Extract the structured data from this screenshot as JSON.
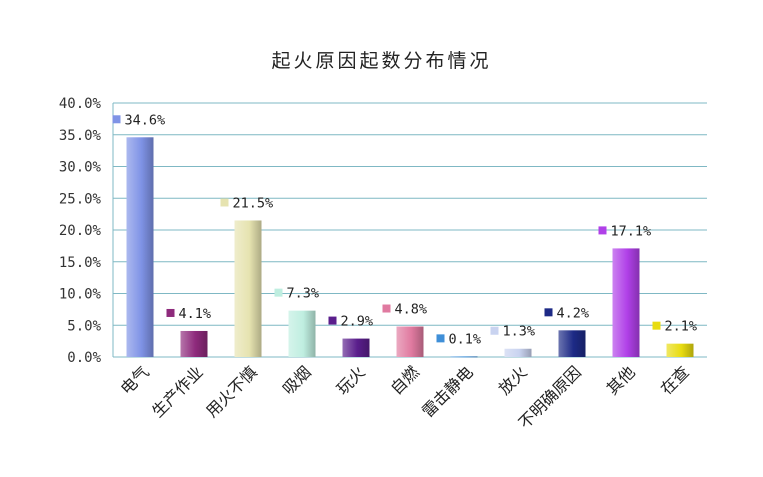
{
  "chart_data": {
    "type": "bar",
    "title": "起火原因起数分布情况",
    "xlabel": "",
    "ylabel": "",
    "ylim": [
      0,
      40
    ],
    "yticks": [
      "0.0%",
      "5.0%",
      "10.0%",
      "15.0%",
      "20.0%",
      "25.0%",
      "30.0%",
      "35.0%",
      "40.0%"
    ],
    "grid": true,
    "categories": [
      "电气",
      "生产作业",
      "用火不慎",
      "吸烟",
      "玩火",
      "自燃",
      "雷击静电",
      "放火",
      "不明确原因",
      "其他",
      "在查"
    ],
    "values": [
      34.6,
      4.1,
      21.5,
      7.3,
      2.9,
      4.8,
      0.1,
      1.3,
      4.2,
      17.1,
      2.1
    ],
    "data_labels": [
      "34.6%",
      "4.1%",
      "21.5%",
      "7.3%",
      "2.9%",
      "4.8%",
      "0.1%",
      "1.3%",
      "4.2%",
      "17.1%",
      "2.1%"
    ],
    "colors": [
      "#7f93e6",
      "#8e2a7c",
      "#e6e3b0",
      "#bfeee0",
      "#5a1e8c",
      "#e07aa0",
      "#3f8fd8",
      "#c9d3f0",
      "#1d2a86",
      "#b040e8",
      "#e8dc10"
    ]
  }
}
